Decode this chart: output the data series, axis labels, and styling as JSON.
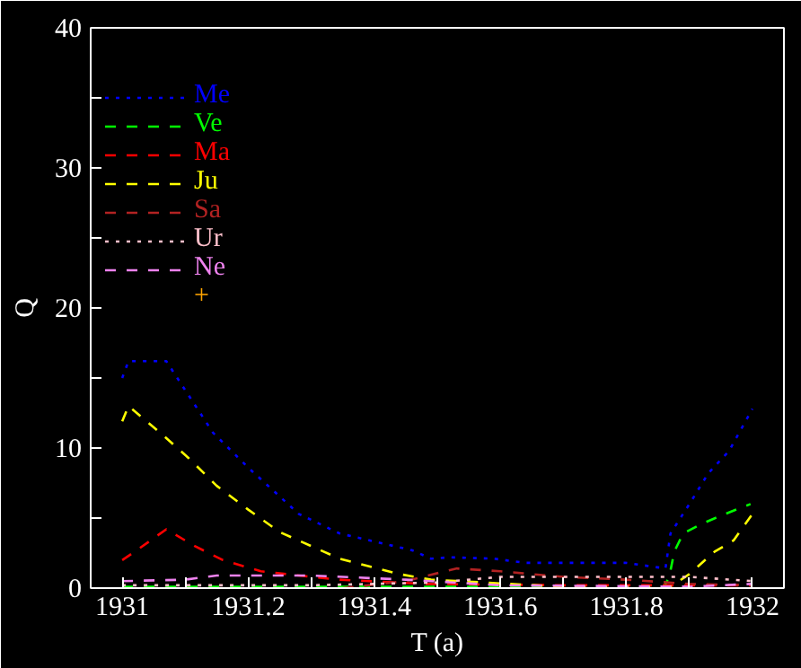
{
  "chart_data": {
    "type": "line",
    "xlabel": "T (a)",
    "ylabel": "Q",
    "xlim": [
      1930.95,
      1932.05
    ],
    "ylim": [
      0,
      40
    ],
    "xticks": [
      1931,
      {
        "value": 1931.1,
        "label": null
      },
      1931.2,
      {
        "value": 1931.3,
        "label": null
      },
      1931.4,
      {
        "value": 1931.5,
        "label": null
      },
      1931.6,
      {
        "value": 1931.7,
        "label": null
      },
      1931.8,
      {
        "value": 1931.9,
        "label": null
      },
      1932
    ],
    "yticks": [
      0,
      {
        "value": 5,
        "label": null
      },
      10,
      {
        "value": 15,
        "label": null
      },
      20,
      {
        "value": 25,
        "label": null
      },
      30,
      {
        "value": 35,
        "label": null
      },
      40
    ],
    "grid": false,
    "legend": "top left",
    "series": [
      {
        "name": "Me",
        "color": "#0000ff",
        "line_style": "dotted",
        "x": [
          1931,
          1931.01,
          1931.07,
          1931.144,
          1931.2,
          1931.28,
          1931.345,
          1931.46,
          1931.49,
          1931.52,
          1931.59,
          1931.64,
          1931.8,
          1931.862,
          1931.87,
          1931.9,
          1931.93,
          1931.963,
          1932
        ],
        "values": [
          15.0,
          16.2,
          16.2,
          11.1,
          8.6,
          5.3,
          3.9,
          2.7,
          2.1,
          2.2,
          2.1,
          1.8,
          1.8,
          1.4,
          3.9,
          6.0,
          8.2,
          9.8,
          12.8
        ]
      },
      {
        "name": "Ve",
        "color": "#00ff00",
        "line_style": "dashed",
        "x": [
          1931,
          1931.5,
          1931.86,
          1931.868,
          1931.876,
          1931.89,
          1931.92,
          1931.957,
          1931.997
        ],
        "values": [
          0.1,
          0.1,
          0.1,
          0.8,
          2.6,
          3.9,
          4.6,
          5.3,
          6.0
        ]
      },
      {
        "name": "Ma",
        "color": "#ff0000",
        "line_style": "dashed",
        "x": [
          1931,
          1931.02,
          1931.07,
          1931.115,
          1931.16,
          1931.22,
          1931.3,
          1931.345,
          1931.48,
          1931.7,
          1932
        ],
        "values": [
          2.0,
          2.6,
          4.2,
          3.0,
          2.0,
          1.2,
          0.8,
          0.6,
          0.3,
          0.2,
          0.2
        ]
      },
      {
        "name": "Ju",
        "color": "#ffff00",
        "line_style": "dashed",
        "x": [
          1931,
          1931.01,
          1931.06,
          1931.105,
          1931.15,
          1931.2,
          1931.25,
          1931.3,
          1931.345,
          1931.44,
          1931.49,
          1931.7,
          1931.87,
          1931.9,
          1931.94,
          1931.97,
          1932
        ],
        "values": [
          11.9,
          13.0,
          11.1,
          9.3,
          7.3,
          5.6,
          4.0,
          3.0,
          2.1,
          1.0,
          0.6,
          0.1,
          0.1,
          1.0,
          2.6,
          3.4,
          5.3
        ]
      },
      {
        "name": "Sa",
        "color": "#b22222",
        "line_style": "dashed",
        "x": [
          1931.35,
          1931.45,
          1931.53,
          1931.6,
          1931.7,
          1931.8,
          1931.9,
          1932
        ],
        "values": [
          0.0,
          0.5,
          1.4,
          1.2,
          0.8,
          0.6,
          0.3,
          0.2
        ]
      },
      {
        "name": "Ur",
        "color": "#ffc0cb",
        "line_style": "dotted",
        "x": [
          1931,
          1931.3,
          1931.5,
          1931.6,
          1931.9,
          1932
        ],
        "values": [
          0.2,
          0.2,
          0.4,
          0.8,
          0.8,
          0.5
        ]
      },
      {
        "name": "Ne",
        "color": "#ee82ee",
        "line_style": "dashed",
        "x": [
          1931,
          1931.1,
          1931.15,
          1931.3,
          1931.45,
          1931.6,
          1931.9,
          1932
        ],
        "values": [
          0.5,
          0.6,
          0.9,
          0.9,
          0.6,
          0.2,
          0.1,
          0.3
        ]
      },
      {
        "name": "+",
        "color": "#ffa500",
        "line_style": "solid"
      }
    ]
  }
}
